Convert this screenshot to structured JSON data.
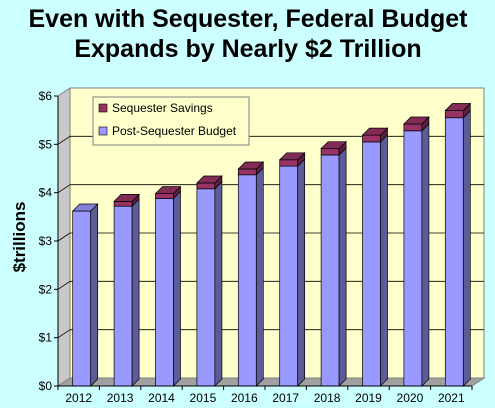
{
  "chart_data": {
    "type": "bar",
    "stacked": true,
    "title_lines": [
      "Even with Sequester, Federal Budget",
      "Expands by Nearly $2 Trillion"
    ],
    "ylabel": "$trillions",
    "xlabel": "",
    "ylim": [
      0,
      6
    ],
    "yticks": [
      "$0",
      "$1",
      "$2",
      "$3",
      "$4",
      "$5",
      "$6"
    ],
    "categories": [
      "2012",
      "2013",
      "2014",
      "2015",
      "2016",
      "2017",
      "2018",
      "2019",
      "2020",
      "2021"
    ],
    "series": [
      {
        "name": "Post-Sequester Budget",
        "color": "#9999ff",
        "values": [
          3.62,
          3.72,
          3.88,
          4.08,
          4.37,
          4.55,
          4.78,
          5.05,
          5.28,
          5.55
        ]
      },
      {
        "name": "Sequester Savings",
        "color": "#993366",
        "values": [
          0.0,
          0.1,
          0.1,
          0.12,
          0.12,
          0.13,
          0.13,
          0.14,
          0.14,
          0.15
        ]
      }
    ],
    "legend_order": [
      "Sequester Savings",
      "Post-Sequester Budget"
    ],
    "legend_position": "top-left",
    "grid": true,
    "plot_background": "#ffffcc",
    "page_background": "#ccffff"
  }
}
